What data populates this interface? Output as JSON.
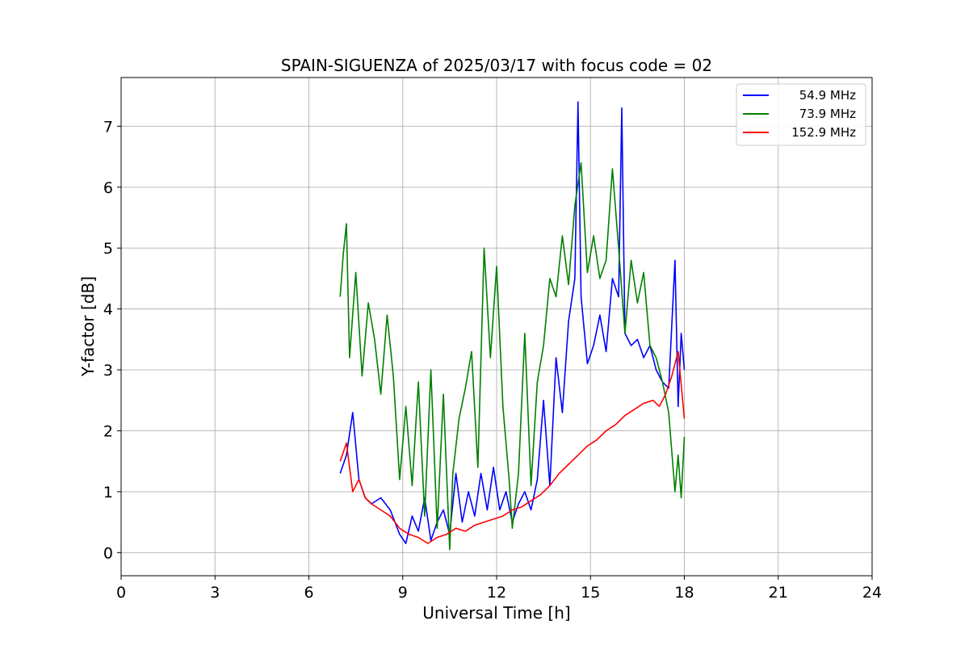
{
  "chart_data": {
    "type": "line",
    "title": "SPAIN-SIGUENZA of 2025/03/17 with focus code = 02",
    "xlabel": "Universal Time [h]",
    "ylabel": "Y-factor [dB]",
    "xlim": [
      0,
      24
    ],
    "ylim": [
      -0.38,
      7.8
    ],
    "xticks": [
      "0",
      "3",
      "6",
      "9",
      "12",
      "15",
      "18",
      "21",
      "24"
    ],
    "yticks": [
      "0",
      "1",
      "2",
      "3",
      "4",
      "5",
      "6",
      "7"
    ],
    "grid": true,
    "legend_position": "top-right",
    "series": [
      {
        "name": "54.9 MHz",
        "color": "#0000ff",
        "x": [
          7.0,
          7.2,
          7.4,
          7.6,
          7.8,
          8.0,
          8.3,
          8.6,
          8.9,
          9.1,
          9.3,
          9.5,
          9.7,
          9.9,
          10.1,
          10.3,
          10.5,
          10.7,
          10.9,
          11.1,
          11.3,
          11.5,
          11.7,
          11.9,
          12.1,
          12.3,
          12.5,
          12.7,
          12.9,
          13.1,
          13.3,
          13.5,
          13.7,
          13.9,
          14.1,
          14.3,
          14.5,
          14.6,
          14.7,
          14.9,
          15.1,
          15.3,
          15.5,
          15.7,
          15.9,
          16.0,
          16.1,
          16.3,
          16.5,
          16.7,
          16.9,
          17.1,
          17.3,
          17.5,
          17.7,
          17.8,
          17.9,
          18.0
        ],
        "y": [
          1.3,
          1.6,
          2.3,
          1.2,
          0.9,
          0.8,
          0.9,
          0.7,
          0.3,
          0.15,
          0.6,
          0.35,
          0.9,
          0.2,
          0.5,
          0.7,
          0.3,
          1.3,
          0.5,
          1.0,
          0.6,
          1.3,
          0.7,
          1.4,
          0.7,
          1.0,
          0.5,
          0.8,
          1.0,
          0.7,
          1.2,
          2.5,
          1.1,
          3.2,
          2.3,
          3.8,
          4.5,
          7.4,
          4.2,
          3.1,
          3.4,
          3.9,
          3.3,
          4.5,
          4.2,
          7.3,
          3.6,
          3.4,
          3.5,
          3.2,
          3.4,
          3.0,
          2.8,
          2.7,
          4.8,
          2.4,
          3.6,
          3.0
        ]
      },
      {
        "name": "73.9 MHz",
        "color": "#008000",
        "x": [
          7.0,
          7.1,
          7.2,
          7.3,
          7.5,
          7.7,
          7.9,
          8.1,
          8.3,
          8.5,
          8.7,
          8.9,
          9.1,
          9.3,
          9.5,
          9.7,
          9.9,
          10.1,
          10.3,
          10.5,
          10.6,
          10.8,
          11.0,
          11.2,
          11.4,
          11.6,
          11.8,
          12.0,
          12.2,
          12.4,
          12.5,
          12.7,
          12.9,
          13.1,
          13.3,
          13.5,
          13.7,
          13.9,
          14.1,
          14.3,
          14.5,
          14.7,
          14.9,
          15.1,
          15.3,
          15.5,
          15.7,
          15.9,
          16.1,
          16.3,
          16.5,
          16.7,
          16.9,
          17.1,
          17.3,
          17.5,
          17.7,
          17.8,
          17.9,
          18.0
        ],
        "y": [
          4.2,
          4.9,
          5.4,
          3.2,
          4.6,
          2.9,
          4.1,
          3.5,
          2.6,
          3.9,
          2.9,
          1.2,
          2.4,
          1.1,
          2.8,
          0.6,
          3.0,
          0.4,
          2.6,
          0.05,
          1.3,
          2.2,
          2.7,
          3.3,
          1.4,
          5.0,
          3.2,
          4.7,
          2.4,
          1.2,
          0.4,
          1.3,
          3.6,
          1.1,
          2.8,
          3.4,
          4.5,
          4.2,
          5.2,
          4.4,
          5.7,
          6.4,
          4.6,
          5.2,
          4.5,
          4.8,
          6.3,
          5.0,
          3.6,
          4.8,
          4.1,
          4.6,
          3.4,
          3.2,
          2.8,
          2.3,
          1.0,
          1.6,
          0.9,
          1.9
        ]
      },
      {
        "name": "152.9 MHz",
        "color": "#ff0000",
        "x": [
          7.0,
          7.2,
          7.4,
          7.6,
          7.8,
          8.0,
          8.3,
          8.6,
          8.9,
          9.2,
          9.5,
          9.8,
          10.1,
          10.4,
          10.7,
          11.0,
          11.3,
          11.6,
          11.9,
          12.2,
          12.5,
          12.8,
          13.1,
          13.4,
          13.7,
          14.0,
          14.3,
          14.6,
          14.9,
          15.2,
          15.5,
          15.8,
          16.1,
          16.4,
          16.7,
          17.0,
          17.2,
          17.4,
          17.6,
          17.8,
          18.0
        ],
        "y": [
          1.5,
          1.8,
          1.0,
          1.2,
          0.9,
          0.8,
          0.7,
          0.6,
          0.4,
          0.3,
          0.25,
          0.15,
          0.25,
          0.3,
          0.4,
          0.35,
          0.45,
          0.5,
          0.55,
          0.6,
          0.7,
          0.75,
          0.85,
          0.95,
          1.1,
          1.3,
          1.45,
          1.6,
          1.75,
          1.85,
          2.0,
          2.1,
          2.25,
          2.35,
          2.45,
          2.5,
          2.4,
          2.6,
          2.9,
          3.3,
          2.2
        ]
      }
    ]
  }
}
